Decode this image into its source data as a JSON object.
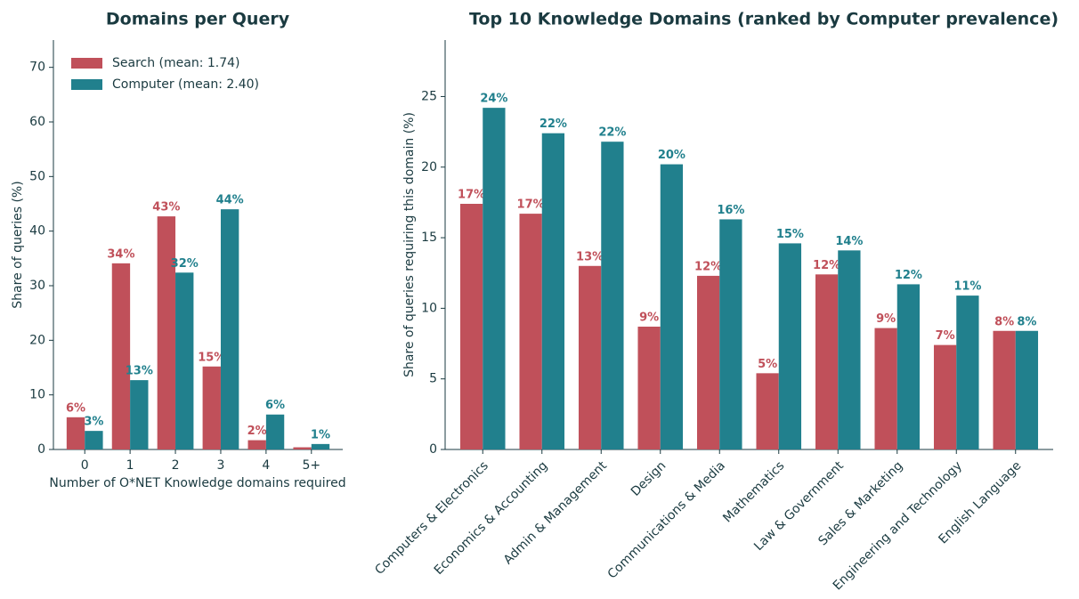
{
  "chart_data": [
    {
      "type": "bar",
      "title": "Domains per Query",
      "x_label": "Number of O*NET Knowledge domains required",
      "y_label": "Share of queries (%)",
      "categories": [
        "0",
        "1",
        "2",
        "3",
        "4",
        "5+"
      ],
      "series": [
        {
          "name": "Search (mean: 1.74)",
          "color": "#c0505a",
          "values": [
            5.9,
            34.1,
            42.7,
            15.2,
            1.7,
            0.4
          ],
          "value_labels": [
            "6%",
            "34%",
            "43%",
            "15%",
            "2%",
            null
          ]
        },
        {
          "name": "Computer (mean: 2.40)",
          "color": "#21808d",
          "values": [
            3.4,
            12.7,
            32.4,
            44.0,
            6.4,
            1.0
          ],
          "value_labels": [
            "3%",
            "13%",
            "32%",
            "44%",
            "6%",
            "1%"
          ]
        }
      ],
      "ylim": [
        0,
        75
      ],
      "yticks": [
        0,
        10,
        20,
        30,
        40,
        50,
        60,
        70
      ],
      "legend": "upper left"
    },
    {
      "type": "bar",
      "title": "Top 10 Knowledge Domains (ranked by Computer prevalence)",
      "y_label": "Share of queries requiring this domain (%)",
      "categories": [
        "Computers & Electronics",
        "Economics & Accounting",
        "Admin & Management",
        "Design",
        "Communications & Media",
        "Mathematics",
        "Law & Government",
        "Sales & Marketing",
        "Engineering and Technology",
        "English Language"
      ],
      "series": [
        {
          "color": "#c0505a",
          "values": [
            17.4,
            16.7,
            13.0,
            8.7,
            12.3,
            5.4,
            12.4,
            8.6,
            7.4,
            8.4
          ],
          "value_labels": [
            "17%",
            "17%",
            "13%",
            "9%",
            "12%",
            "5%",
            "12%",
            "9%",
            "7%",
            "8%"
          ]
        },
        {
          "color": "#21808d",
          "values": [
            24.2,
            22.4,
            21.8,
            20.2,
            16.3,
            14.6,
            14.1,
            11.7,
            10.9,
            8.4
          ],
          "value_labels": [
            "24%",
            "22%",
            "22%",
            "20%",
            "16%",
            "15%",
            "14%",
            "12%",
            "11%",
            "8%"
          ]
        }
      ],
      "ylim": [
        0,
        29
      ],
      "yticks": [
        0,
        5,
        10,
        15,
        20,
        25
      ]
    }
  ]
}
